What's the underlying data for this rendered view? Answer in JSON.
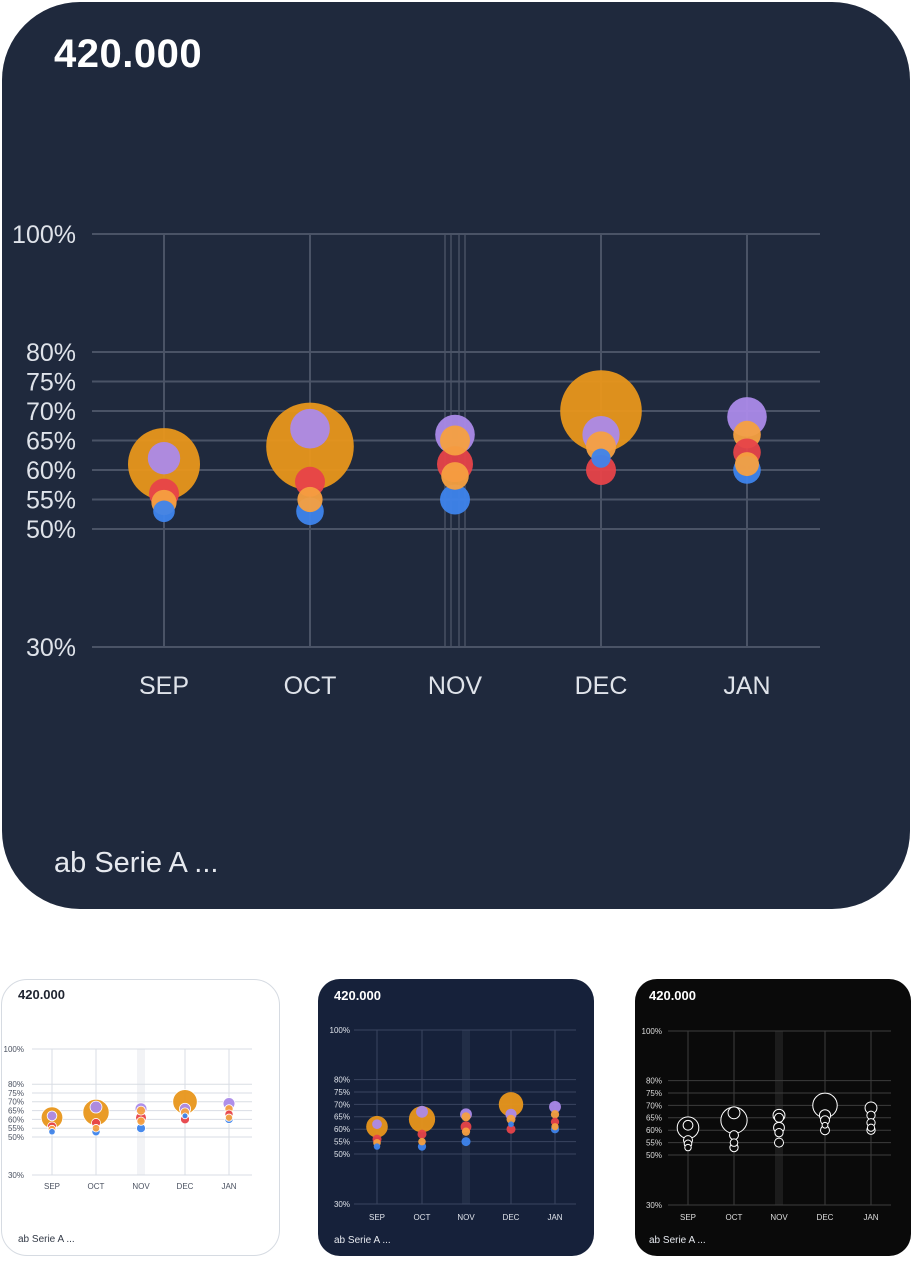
{
  "cards": [
    {
      "value": "420.000",
      "footer": "ab Serie A ..."
    },
    {
      "value": "420.000",
      "footer": "ab Serie A ..."
    },
    {
      "value": "420.000",
      "footer": "ab Serie A ..."
    },
    {
      "value": "420.000",
      "footer": "ab Serie A ..."
    }
  ],
  "themes": {
    "dark": {
      "background": "#1f293d",
      "grid": "#4a5366",
      "label": "#dfe3ea"
    },
    "light": {
      "background": "#ffffff",
      "grid": "#d9dde4",
      "label": "#4a5160"
    },
    "navy": {
      "background": "#16213a",
      "grid": "#3a4560",
      "label": "#dfe3ea"
    },
    "black": {
      "background": "#0a0a0a",
      "grid": "#3d3d3d",
      "label": "#dddddd"
    }
  },
  "chart_data": {
    "type": "scatter",
    "categories": [
      "SEP",
      "OCT",
      "NOV",
      "DEC",
      "JAN"
    ],
    "y_ticks": [
      100,
      80,
      75,
      70,
      65,
      60,
      55,
      50,
      30
    ],
    "y_tick_labels": [
      "100%",
      "80%",
      "75%",
      "70%",
      "65%",
      "60%",
      "55%",
      "50%",
      "30%"
    ],
    "ylim": [
      30,
      100
    ],
    "series_colors": {
      "orange_large": "#e8961b",
      "purple": "#ab8ae9",
      "orange": "#f5a040",
      "red": "#e74349",
      "blue": "#3e84ec"
    },
    "points": [
      {
        "category": "SEP",
        "color": "orange_large",
        "y": 61,
        "size": 6
      },
      {
        "category": "SEP",
        "color": "purple",
        "y": 62,
        "size": 2.7
      },
      {
        "category": "SEP",
        "color": "red",
        "y": 56,
        "size": 2.5
      },
      {
        "category": "SEP",
        "color": "orange",
        "y": 54.5,
        "size": 2.1
      },
      {
        "category": "SEP",
        "color": "blue",
        "y": 53,
        "size": 1.8
      },
      {
        "category": "OCT",
        "color": "orange_large",
        "y": 64,
        "size": 7.3
      },
      {
        "category": "OCT",
        "color": "purple",
        "y": 67,
        "size": 3.3
      },
      {
        "category": "OCT",
        "color": "red",
        "y": 58,
        "size": 2.5
      },
      {
        "category": "OCT",
        "color": "orange",
        "y": 55,
        "size": 2.1
      },
      {
        "category": "OCT",
        "color": "blue",
        "y": 53,
        "size": 2.3
      },
      {
        "category": "NOV",
        "color": "purple",
        "y": 66,
        "size": 3.3
      },
      {
        "category": "NOV",
        "color": "orange",
        "y": 65,
        "size": 2.5
      },
      {
        "category": "NOV",
        "color": "red",
        "y": 61,
        "size": 3
      },
      {
        "category": "NOV",
        "color": "orange",
        "y": 59,
        "size": 2.3
      },
      {
        "category": "NOV",
        "color": "blue",
        "y": 55,
        "size": 2.5
      },
      {
        "category": "DEC",
        "color": "orange_large",
        "y": 70,
        "size": 6.8
      },
      {
        "category": "DEC",
        "color": "purple",
        "y": 66,
        "size": 3.1
      },
      {
        "category": "DEC",
        "color": "orange",
        "y": 64,
        "size": 2.5
      },
      {
        "category": "DEC",
        "color": "blue",
        "y": 62,
        "size": 1.6
      },
      {
        "category": "DEC",
        "color": "red",
        "y": 60,
        "size": 2.5
      },
      {
        "category": "JAN",
        "color": "purple",
        "y": 69,
        "size": 3.3
      },
      {
        "category": "JAN",
        "color": "orange",
        "y": 66,
        "size": 2.3
      },
      {
        "category": "JAN",
        "color": "red",
        "y": 63,
        "size": 2.3
      },
      {
        "category": "JAN",
        "color": "orange",
        "y": 61,
        "size": 2
      },
      {
        "category": "JAN",
        "color": "blue",
        "y": 60,
        "size": 2.3
      }
    ],
    "grid": true,
    "legend": "none"
  }
}
